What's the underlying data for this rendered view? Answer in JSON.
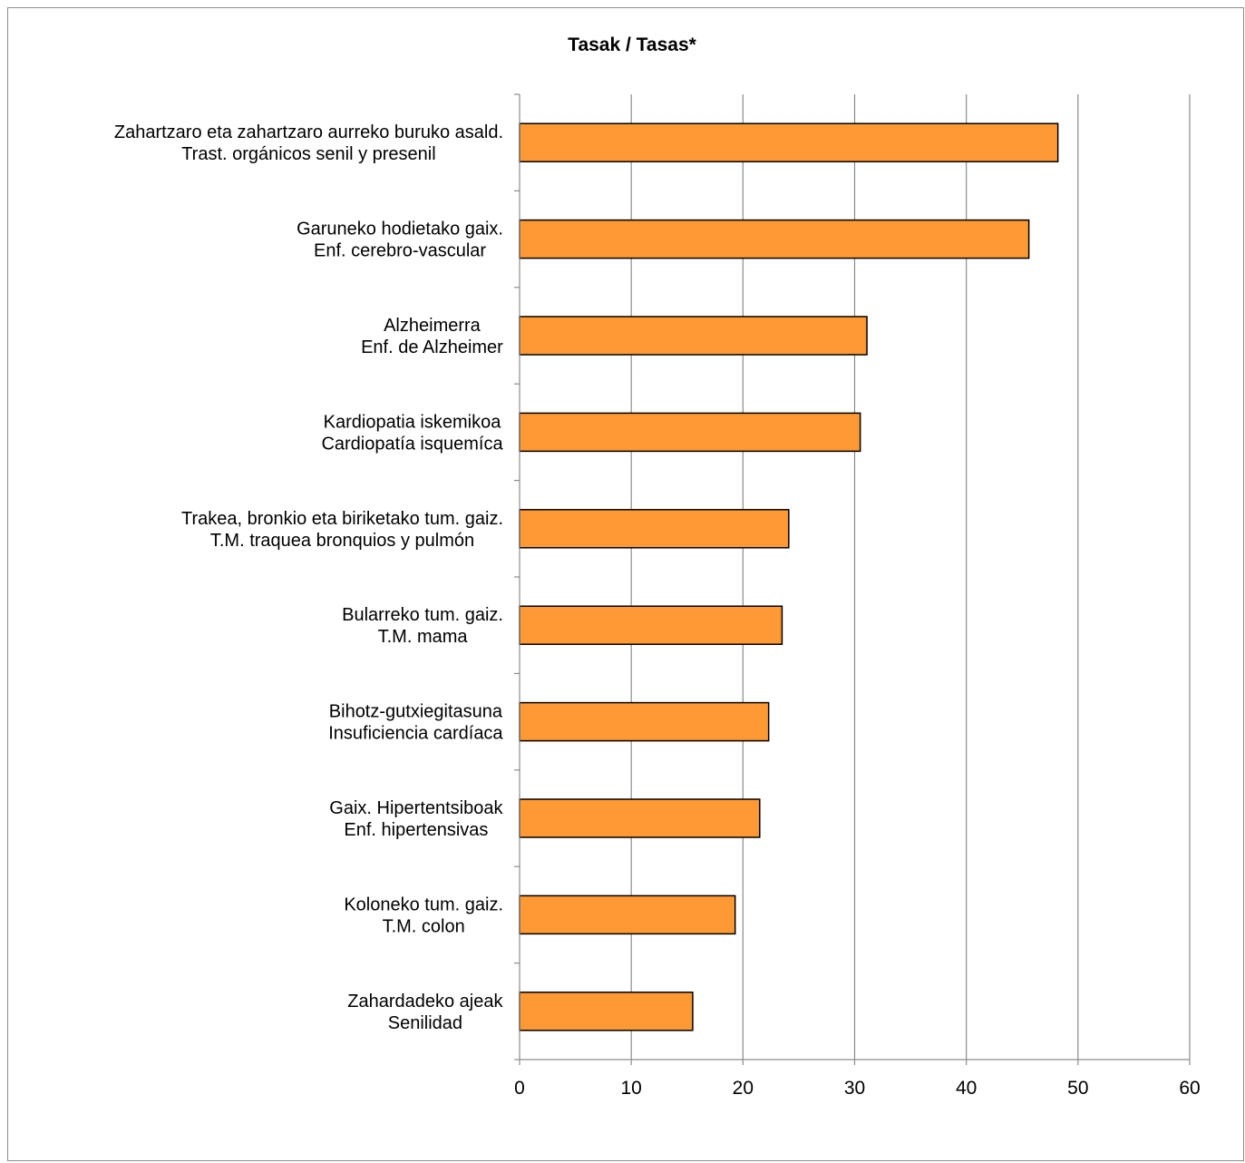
{
  "chart_data": {
    "type": "bar",
    "orientation": "horizontal",
    "title": "Tasak / Tasas*",
    "xlabel": "",
    "ylabel": "",
    "categories": [
      [
        "Zahartzaro eta zahartzaro aurreko buruko asald.",
        "Trast. orgánicos senil y presenil"
      ],
      [
        "Garuneko hodietako gaix.",
        "Enf. cerebro-vascular"
      ],
      [
        "Alzheimerra",
        "Enf. de Alzheimer"
      ],
      [
        "Kardiopatia iskemikoa",
        "Cardiopatía isquemíca"
      ],
      [
        "Trakea, bronkio eta biriketako tum. gaiz.",
        "T.M. traquea bronquios y pulmón"
      ],
      [
        "Bularreko tum. gaiz.",
        "T.M. mama"
      ],
      [
        "Bihotz-gutxiegitasuna",
        "Insuficiencia cardíaca"
      ],
      [
        "Gaix. Hipertentsiboak",
        "Enf. hipertensivas"
      ],
      [
        "Koloneko tum. gaiz.",
        "T.M. colon"
      ],
      [
        "Zahardadeko ajeak",
        "Senilidad"
      ]
    ],
    "values": [
      48.2,
      45.6,
      31.1,
      30.5,
      24.1,
      23.5,
      22.3,
      21.5,
      19.3,
      15.5
    ],
    "xlim": [
      0,
      60
    ],
    "xticks": [
      0,
      10,
      20,
      30,
      40,
      50,
      60
    ],
    "vertical_grid": true,
    "legend": "none",
    "bar_color": "#FF9933",
    "bar_border_color": "#000000",
    "grid_color": "#8C8C8C"
  }
}
